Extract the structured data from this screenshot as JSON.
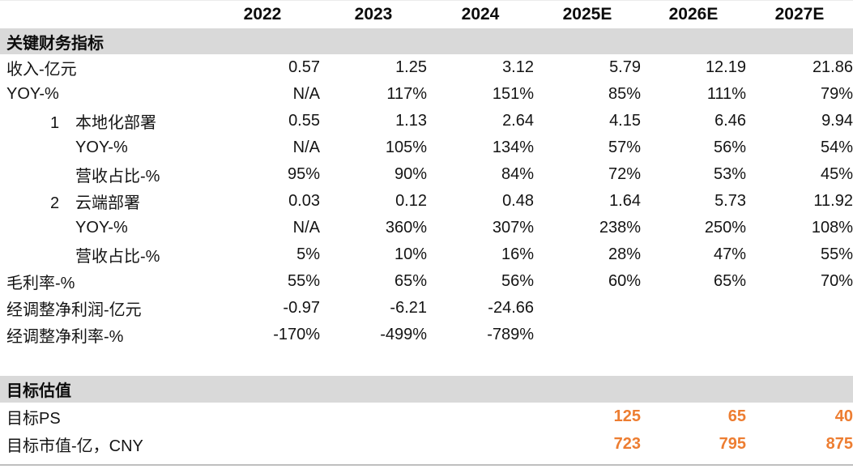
{
  "colors": {
    "accent_orange": "#ED7D31",
    "band_gray": "#D9D9D9",
    "text_black": "#111111",
    "bottom_rule_gray": "#BFBFBF"
  },
  "table": {
    "columns": [
      "",
      "2022",
      "2023",
      "2024",
      "2025E",
      "2026E",
      "2027E"
    ],
    "sections": [
      {
        "header": "关键财务指标",
        "spacer_before": false,
        "rows": [
          {
            "label": "收入-亿元",
            "num": "",
            "indent": 0,
            "orange": false,
            "values": [
              "0.57",
              "1.25",
              "3.12",
              "5.79",
              "12.19",
              "21.86"
            ]
          },
          {
            "label": "YOY-%",
            "num": "",
            "indent": 0,
            "orange": false,
            "values": [
              "N/A",
              "117%",
              "151%",
              "85%",
              "111%",
              "79%"
            ]
          },
          {
            "label": "本地化部署",
            "num": "1",
            "indent": 1,
            "orange": false,
            "values": [
              "0.55",
              "1.13",
              "2.64",
              "4.15",
              "6.46",
              "9.94"
            ]
          },
          {
            "label": "YOY-%",
            "num": "",
            "indent": 2,
            "orange": false,
            "values": [
              "N/A",
              "105%",
              "134%",
              "57%",
              "56%",
              "54%"
            ]
          },
          {
            "label": "营收占比-%",
            "num": "",
            "indent": 2,
            "orange": false,
            "values": [
              "95%",
              "90%",
              "84%",
              "72%",
              "53%",
              "45%"
            ]
          },
          {
            "label": "云端部署",
            "num": "2",
            "indent": 1,
            "orange": false,
            "values": [
              "0.03",
              "0.12",
              "0.48",
              "1.64",
              "5.73",
              "11.92"
            ]
          },
          {
            "label": "YOY-%",
            "num": "",
            "indent": 2,
            "orange": false,
            "values": [
              "N/A",
              "360%",
              "307%",
              "238%",
              "250%",
              "108%"
            ]
          },
          {
            "label": "营收占比-%",
            "num": "",
            "indent": 2,
            "orange": false,
            "values": [
              "5%",
              "10%",
              "16%",
              "28%",
              "47%",
              "55%"
            ]
          },
          {
            "label": "毛利率-%",
            "num": "",
            "indent": 0,
            "orange": false,
            "values": [
              "55%",
              "65%",
              "56%",
              "60%",
              "65%",
              "70%"
            ]
          },
          {
            "label": "经调整净利润-亿元",
            "num": "",
            "indent": 0,
            "orange": false,
            "values": [
              "-0.97",
              "-6.21",
              "-24.66",
              "",
              "",
              ""
            ]
          },
          {
            "label": "经调整净利率-%",
            "num": "",
            "indent": 0,
            "orange": false,
            "values": [
              "-170%",
              "-499%",
              "-789%",
              "",
              "",
              ""
            ]
          }
        ]
      },
      {
        "header": "目标估值",
        "spacer_before": true,
        "rows": [
          {
            "label": "目标PS",
            "num": "",
            "indent": 0,
            "orange": true,
            "values": [
              "",
              "",
              "",
              "125",
              "65",
              "40"
            ]
          },
          {
            "label": "目标市值-亿，CNY",
            "num": "",
            "indent": 0,
            "orange": true,
            "values": [
              "",
              "",
              "",
              "723",
              "795",
              "875"
            ]
          }
        ]
      }
    ]
  }
}
